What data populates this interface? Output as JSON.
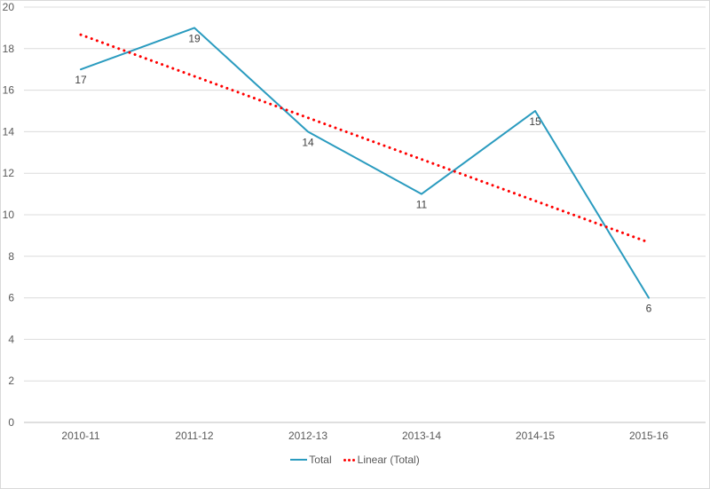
{
  "chart_data": {
    "type": "line",
    "title": "",
    "xlabel": "",
    "ylabel": "",
    "categories": [
      "2010-11",
      "2011-12",
      "2012-13",
      "2013-14",
      "2014-15",
      "2015-16"
    ],
    "series": [
      {
        "name": "Total",
        "values": [
          17,
          19,
          14,
          11,
          15,
          6
        ],
        "data_labels": [
          "17",
          "19",
          "14",
          "11",
          "15",
          "6"
        ],
        "color": "#2A9BBF",
        "style": "solid"
      }
    ],
    "trendline": {
      "name": "Linear (Total)",
      "color": "#FF0000",
      "style": "dotted",
      "start_value": 18.67,
      "end_value": 8.67
    },
    "ylim": [
      0,
      20
    ],
    "y_ticks": [
      "20",
      "18",
      "16",
      "14",
      "12",
      "10",
      "8",
      "6",
      "4",
      "2",
      "0"
    ],
    "grid": true,
    "legend_position": "bottom"
  },
  "legend": {
    "items": [
      {
        "label": "Total",
        "color": "#2A9BBF",
        "marker": "line"
      },
      {
        "label": "Linear (Total)",
        "color": "#FF0000",
        "marker": "dots"
      }
    ]
  },
  "colors": {
    "background": "#FFFFFF",
    "border": "#D9D9D9",
    "gridline": "#DCDCDC",
    "axis_line": "#BFBFBF",
    "tick_label": "#595959",
    "data_label": "#404040",
    "series": "#2A9BBF",
    "trendline": "#FF0000"
  }
}
